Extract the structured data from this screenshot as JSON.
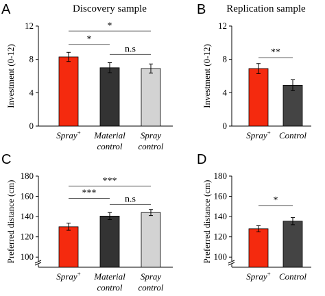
{
  "chart_data": [
    {
      "panel": "A",
      "type": "bar",
      "title": "Discovery sample",
      "ylabel": "Investment (0-12)",
      "ylim": [
        0,
        12
      ],
      "yticks": [
        "0",
        "4",
        "8",
        "12"
      ],
      "categories": [
        {
          "main": "Spray",
          "sup": "+",
          "line2": ""
        },
        {
          "main": "Material",
          "sup": "",
          "line2": "control"
        },
        {
          "main": "Spray",
          "sup": "",
          "line2": "control"
        }
      ],
      "values": [
        8.3,
        7.0,
        6.9
      ],
      "errors": [
        0.55,
        0.6,
        0.55
      ],
      "colors": [
        "#f52a0e",
        "#333333",
        "#d3d3d3"
      ],
      "axis_break": false,
      "brackets": [
        {
          "from": 0,
          "to": 2,
          "y": 11.4,
          "label": "*"
        },
        {
          "from": 0,
          "to": 1,
          "y": 9.8,
          "label": "*"
        },
        {
          "from": 1,
          "to": 2,
          "y": 8.6,
          "label": "n.s"
        }
      ]
    },
    {
      "panel": "B",
      "type": "bar",
      "title": "Replication sample",
      "ylabel": "Investment (0-12)",
      "ylim": [
        0,
        12
      ],
      "yticks": [
        "0",
        "4",
        "8",
        "12"
      ],
      "categories": [
        {
          "main": "Spray",
          "sup": "+",
          "line2": ""
        },
        {
          "main": "Control",
          "sup": "",
          "line2": ""
        }
      ],
      "values": [
        6.9,
        4.9
      ],
      "errors": [
        0.6,
        0.65
      ],
      "colors": [
        "#f52a0e",
        "#444444"
      ],
      "axis_break": false,
      "brackets": [
        {
          "from": 0,
          "to": 1,
          "y": 8.2,
          "label": "**"
        }
      ]
    },
    {
      "panel": "C",
      "type": "bar",
      "title": "",
      "ylabel": "Preferred distance (cm)",
      "ylim": [
        90,
        180
      ],
      "yticks": [
        "100",
        "120",
        "140",
        "160",
        "180"
      ],
      "categories": [
        {
          "main": "Spray",
          "sup": "+",
          "line2": ""
        },
        {
          "main": "Material",
          "sup": "",
          "line2": "control"
        },
        {
          "main": "Spray",
          "sup": "",
          "line2": "control"
        }
      ],
      "values": [
        130,
        140.5,
        144
      ],
      "errors": [
        3.5,
        3.5,
        3.0
      ],
      "colors": [
        "#f52a0e",
        "#333333",
        "#d3d3d3"
      ],
      "axis_break": true,
      "brackets": [
        {
          "from": 0,
          "to": 2,
          "y": 170,
          "label": "***"
        },
        {
          "from": 0,
          "to": 1,
          "y": 158,
          "label": "***"
        },
        {
          "from": 1,
          "to": 2,
          "y": 152,
          "label": "n.s"
        }
      ]
    },
    {
      "panel": "D",
      "type": "bar",
      "title": "",
      "ylabel": "Preferred distance (cm)",
      "ylim": [
        90,
        180
      ],
      "yticks": [
        "100",
        "120",
        "140",
        "160",
        "180"
      ],
      "categories": [
        {
          "main": "Spray",
          "sup": "+",
          "line2": ""
        },
        {
          "main": "Control",
          "sup": "",
          "line2": ""
        }
      ],
      "values": [
        128,
        135.5
      ],
      "errors": [
        3.0,
        3.5
      ],
      "colors": [
        "#f52a0e",
        "#444444"
      ],
      "axis_break": true,
      "brackets": [
        {
          "from": 0,
          "to": 1,
          "y": 151,
          "label": "*"
        }
      ]
    }
  ]
}
